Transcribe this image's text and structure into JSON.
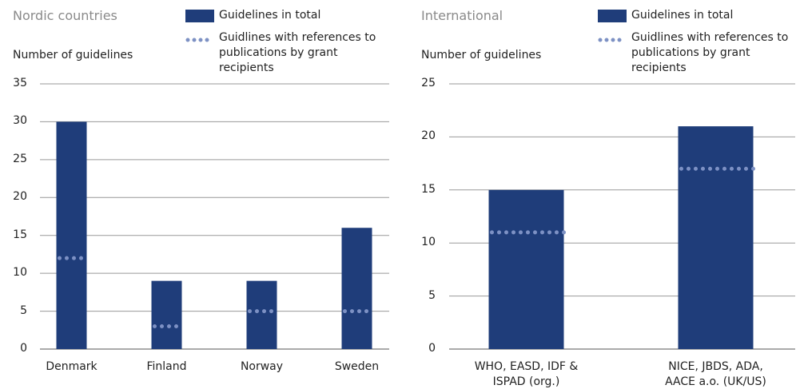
{
  "chart_data": [
    {
      "type": "bar",
      "title": "Nordic countries",
      "y_label": "Number of guidelines",
      "categories": [
        "Denmark",
        "Finland",
        "Norway",
        "Sweden"
      ],
      "series": [
        {
          "name": "Guidelines in total",
          "color": "#1f3d7a",
          "values": [
            30,
            9,
            9,
            16
          ]
        },
        {
          "name": "Guidlines with references to publications by grant recipients",
          "color": "#7d91c4",
          "style": "dotted",
          "values": [
            12,
            3,
            5,
            5
          ]
        }
      ],
      "ylim": [
        0,
        35
      ],
      "yticks": [
        0,
        5,
        10,
        15,
        20,
        25,
        30,
        35
      ],
      "grid": true
    },
    {
      "type": "bar",
      "title": "International",
      "y_label": "Number of guidelines",
      "categories": [
        "WHO, EASD, IDF & ISPAD (org.)",
        "NICE, JBDS, ADA, AACE a.o. (UK/US)"
      ],
      "series": [
        {
          "name": "Guidelines in total",
          "color": "#1f3d7a",
          "values": [
            15,
            21
          ]
        },
        {
          "name": "Guidlines with references to publications by grant recipients",
          "color": "#7d91c4",
          "style": "dotted",
          "values": [
            11,
            17
          ]
        }
      ],
      "ylim": [
        0,
        25
      ],
      "yticks": [
        0,
        5,
        10,
        15,
        20,
        25
      ],
      "grid": true
    }
  ]
}
